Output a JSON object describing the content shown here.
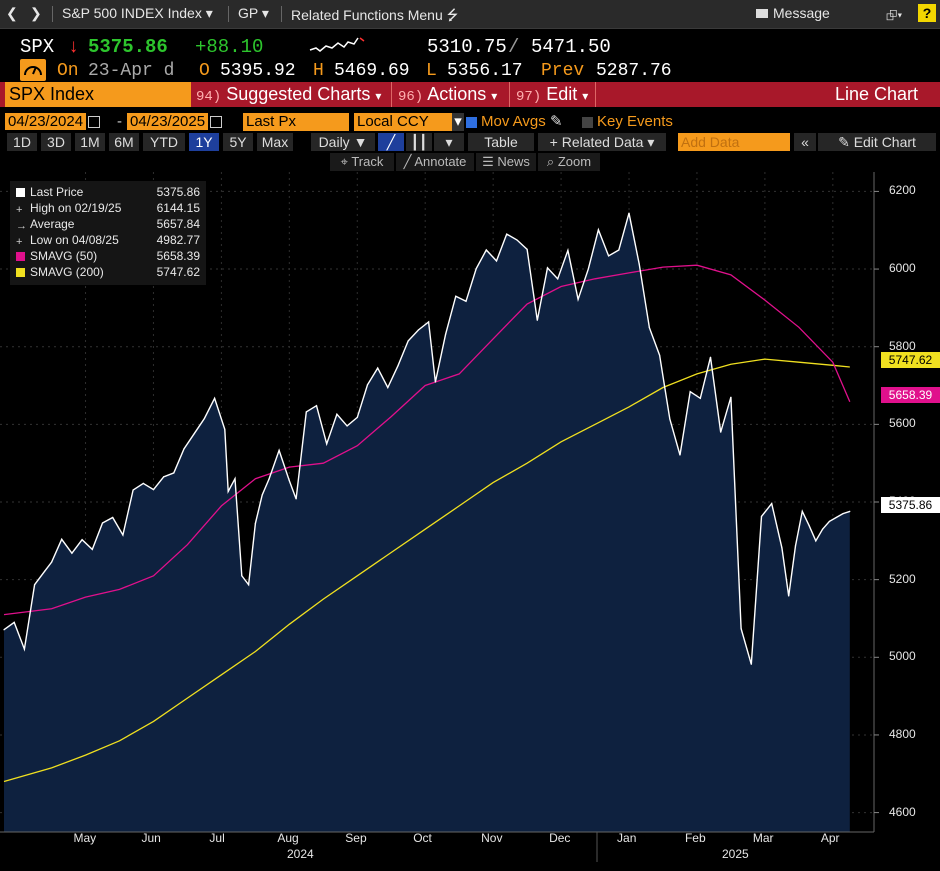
{
  "toolbar": {
    "title": "S&P 500 INDEX Index",
    "gp": "GP",
    "related_menu": "Related Functions Menu",
    "message": "Message"
  },
  "quote": {
    "ticker": "SPX",
    "arrow": "↓",
    "last": "5375.86",
    "change": "+88.10",
    "range_low": "5310.75",
    "range_sep": "/",
    "range_high": "5471.50",
    "date": "23-Apr d",
    "open_label": "O",
    "open": "5395.92",
    "high_label": "H",
    "high": "5469.69",
    "low_label": "L",
    "low": "5356.17",
    "prev_label": "Prev",
    "prev": "5287.76",
    "on_label": "On"
  },
  "menu": {
    "security": "SPX Index",
    "suggested_num": "94)",
    "suggested": "Suggested Charts",
    "actions_num": "96)",
    "actions": "Actions",
    "edit_num": "97)",
    "edit": "Edit",
    "chart_type": "Line Chart"
  },
  "controls": {
    "start_date": "04/23/2024",
    "end_date": "04/23/2025",
    "field": "Last Px",
    "currency": "Local CCY",
    "mov_avgs": "Mov Avgs",
    "key_events": "Key Events"
  },
  "ranges": [
    "1D",
    "3D",
    "1M",
    "6M",
    "YTD",
    "1Y",
    "5Y",
    "Max"
  ],
  "selected_range": "1Y",
  "range_row": {
    "periodicity": "Daily",
    "table": "Table",
    "related_data": "+ Related Data",
    "add_data_placeholder": "Add Data",
    "edit_chart": "Edit Chart"
  },
  "tools": {
    "track": "Track",
    "annotate": "Annotate",
    "news": "News",
    "zoom": "Zoom"
  },
  "legend": [
    {
      "label": "Last Price",
      "value": "5375.86",
      "color": "#ffffff",
      "kind": "swatch"
    },
    {
      "label": "High on 02/19/25",
      "value": "6144.15",
      "color": "#cccccc",
      "kind": "plus"
    },
    {
      "label": "Average",
      "value": "5657.84",
      "color": "#cccccc",
      "kind": "dash"
    },
    {
      "label": "Low on 04/08/25",
      "value": "4982.77",
      "color": "#cccccc",
      "kind": "plus"
    },
    {
      "label": "SMAVG (50)",
      "value": "5658.39",
      "color": "#e0108c",
      "kind": "swatch"
    },
    {
      "label": "SMAVG (200)",
      "value": "5747.62",
      "color": "#f0e020",
      "kind": "swatch"
    }
  ],
  "tags": {
    "sma200": "5747.62",
    "sma50": "5658.39",
    "last": "5375.86"
  },
  "years": [
    "2024",
    "2025"
  ],
  "colors": {
    "price": "#ffffff",
    "fill": "#0e213f",
    "sma50": "#e0108c",
    "sma200": "#f0e020",
    "accent_orange": "#f59a1c",
    "menu_red": "#a8182a",
    "up_green": "#2dc52d",
    "down_red": "#ff3030"
  },
  "chart_data": {
    "type": "line",
    "title": "S&P 500 INDEX",
    "xlabel": "",
    "ylabel": "",
    "ylim": [
      4550,
      6250
    ],
    "y_ticks": [
      4600,
      4800,
      5000,
      5200,
      5400,
      5600,
      5800,
      6000,
      6200
    ],
    "x_ticks": [
      "May",
      "Jun",
      "Jul",
      "Aug",
      "Sep",
      "Oct",
      "Nov",
      "Dec",
      "Jan",
      "Feb",
      "Mar",
      "Apr"
    ],
    "x_tick_pos": [
      0.5,
      1.5,
      2.5,
      3.5,
      4.5,
      5.5,
      6.5,
      7.5,
      8.5,
      9.5,
      10.5,
      11.5
    ],
    "x_range": [
      -0.7,
      11.9
    ],
    "series": [
      {
        "name": "Last Price",
        "x": [
          -0.7,
          -0.55,
          -0.4,
          -0.25,
          -0.1,
          0.0,
          0.15,
          0.3,
          0.45,
          0.6,
          0.75,
          0.9,
          1.05,
          1.2,
          1.35,
          1.5,
          1.65,
          1.8,
          1.95,
          2.1,
          2.25,
          2.4,
          2.55,
          2.6,
          2.7,
          2.8,
          2.9,
          3.0,
          3.1,
          3.2,
          3.35,
          3.5,
          3.6,
          3.75,
          3.9,
          4.05,
          4.2,
          4.35,
          4.5,
          4.65,
          4.8,
          4.95,
          5.1,
          5.25,
          5.4,
          5.55,
          5.65,
          5.8,
          5.95,
          6.1,
          6.25,
          6.4,
          6.55,
          6.7,
          6.85,
          7.0,
          7.15,
          7.3,
          7.45,
          7.6,
          7.75,
          7.9,
          8.05,
          8.2,
          8.35,
          8.5,
          8.65,
          8.8,
          8.95,
          9.1,
          9.25,
          9.4,
          9.55,
          9.7,
          9.85,
          10.0,
          10.15,
          10.3,
          10.45,
          10.6,
          10.75,
          10.85,
          10.95,
          11.05,
          11.15,
          11.25,
          11.35,
          11.45,
          11.55,
          11.65,
          11.75
        ],
        "values": [
          5071,
          5090,
          5021,
          5187,
          5222,
          5245,
          5304,
          5268,
          5303,
          5278,
          5346,
          5360,
          5315,
          5431,
          5448,
          5432,
          5465,
          5475,
          5537,
          5576,
          5615,
          5667,
          5587,
          5427,
          5460,
          5210,
          5187,
          5345,
          5418,
          5459,
          5533,
          5455,
          5408,
          5632,
          5648,
          5550,
          5626,
          5596,
          5618,
          5702,
          5745,
          5695,
          5751,
          5815,
          5843,
          5864,
          5709,
          5832,
          5930,
          5917,
          6001,
          6049,
          6021,
          6090,
          6075,
          6051,
          5868,
          6003,
          5975,
          6048,
          5922,
          6000,
          6101,
          6034,
          6049,
          6144,
          6013,
          5849,
          5778,
          5614,
          5521,
          5684,
          5667,
          5773,
          5580,
          5670,
          5074,
          4982,
          5363,
          5396,
          5282,
          5158,
          5287,
          5376,
          5340,
          5300,
          5330,
          5350,
          5360,
          5370,
          5375.86
        ]
      },
      {
        "name": "SMAVG (50)",
        "x": [
          -0.7,
          0.0,
          0.5,
          1.0,
          1.5,
          2.0,
          2.5,
          3.0,
          3.5,
          4.0,
          4.5,
          5.0,
          5.5,
          6.0,
          6.5,
          7.0,
          7.5,
          8.0,
          8.5,
          9.0,
          9.5,
          10.0,
          10.5,
          11.0,
          11.5,
          11.75
        ],
        "values": [
          5110,
          5125,
          5155,
          5175,
          5210,
          5290,
          5390,
          5460,
          5490,
          5500,
          5545,
          5620,
          5700,
          5730,
          5820,
          5910,
          5955,
          5975,
          5990,
          6005,
          6010,
          5985,
          5920,
          5850,
          5760,
          5658.39
        ]
      },
      {
        "name": "SMAVG (200)",
        "x": [
          -0.7,
          0.0,
          0.5,
          1.0,
          1.5,
          2.0,
          2.5,
          3.0,
          3.5,
          4.0,
          4.5,
          5.0,
          5.5,
          6.0,
          6.5,
          7.0,
          7.5,
          8.0,
          8.5,
          9.0,
          9.5,
          10.0,
          10.5,
          11.0,
          11.5,
          11.75
        ],
        "values": [
          4680,
          4715,
          4748,
          4785,
          4835,
          4895,
          4955,
          5015,
          5085,
          5150,
          5210,
          5270,
          5330,
          5390,
          5450,
          5500,
          5555,
          5600,
          5645,
          5695,
          5730,
          5755,
          5768,
          5760,
          5752,
          5747.62
        ]
      }
    ]
  }
}
